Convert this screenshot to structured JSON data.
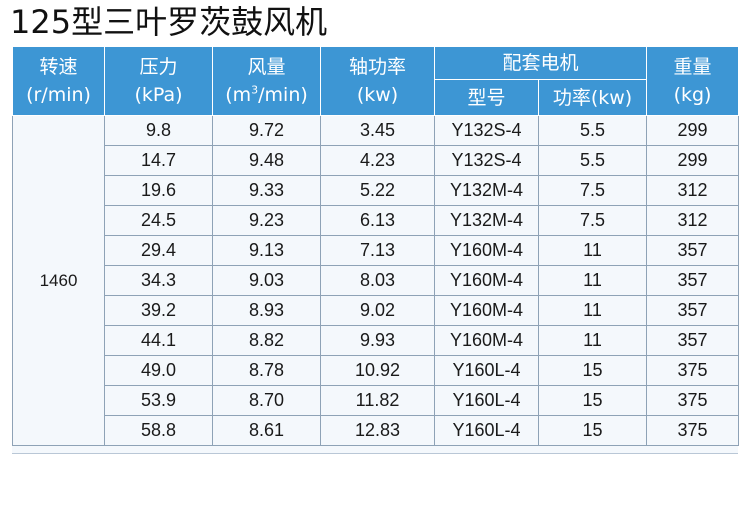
{
  "title": "125型三叶罗茨鼓风机",
  "headers": {
    "speed": {
      "name": "转速",
      "unit": "(r/min)"
    },
    "pressure": {
      "name": "压力",
      "unit": "(kPa)"
    },
    "airflow": {
      "name": "风量",
      "unit_pre": "(m",
      "unit_sup": "3",
      "unit_post": "/min)"
    },
    "shaft_power": {
      "name": "轴功率",
      "unit": "(kw)"
    },
    "motor": {
      "name": "配套电机",
      "model": "型号",
      "power": "功率(kw)"
    },
    "weight": {
      "name": "重量",
      "unit": "(kg)"
    }
  },
  "speed_value": "1460",
  "rows": [
    {
      "pressure": "9.8",
      "airflow": "9.72",
      "shaft_power": "3.45",
      "model": "Y132S-4",
      "power": "5.5",
      "weight": "299"
    },
    {
      "pressure": "14.7",
      "airflow": "9.48",
      "shaft_power": "4.23",
      "model": "Y132S-4",
      "power": "5.5",
      "weight": "299"
    },
    {
      "pressure": "19.6",
      "airflow": "9.33",
      "shaft_power": "5.22",
      "model": "Y132M-4",
      "power": "7.5",
      "weight": "312"
    },
    {
      "pressure": "24.5",
      "airflow": "9.23",
      "shaft_power": "6.13",
      "model": "Y132M-4",
      "power": "7.5",
      "weight": "312"
    },
    {
      "pressure": "29.4",
      "airflow": "9.13",
      "shaft_power": "7.13",
      "model": "Y160M-4",
      "power": "11",
      "weight": "357"
    },
    {
      "pressure": "34.3",
      "airflow": "9.03",
      "shaft_power": "8.03",
      "model": "Y160M-4",
      "power": "11",
      "weight": "357"
    },
    {
      "pressure": "39.2",
      "airflow": "8.93",
      "shaft_power": "9.02",
      "model": "Y160M-4",
      "power": "11",
      "weight": "357"
    },
    {
      "pressure": "44.1",
      "airflow": "8.82",
      "shaft_power": "9.93",
      "model": "Y160M-4",
      "power": "11",
      "weight": "357"
    },
    {
      "pressure": "49.0",
      "airflow": "8.78",
      "shaft_power": "10.92",
      "model": "Y160L-4",
      "power": "15",
      "weight": "375"
    },
    {
      "pressure": "53.9",
      "airflow": "8.70",
      "shaft_power": "11.82",
      "model": "Y160L-4",
      "power": "15",
      "weight": "375"
    },
    {
      "pressure": "58.8",
      "airflow": "8.61",
      "shaft_power": "12.83",
      "model": "Y160L-4",
      "power": "15",
      "weight": "375"
    }
  ],
  "colors": {
    "header_bg": "#3d96d4",
    "body_bg": "#f4f8fc",
    "grid": "#8ea2b6"
  }
}
